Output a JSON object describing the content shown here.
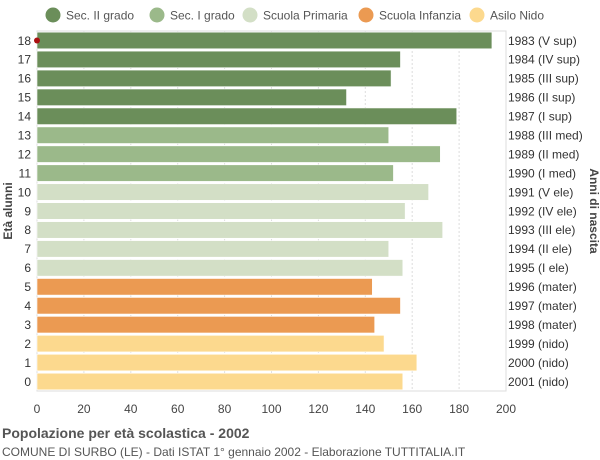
{
  "chart_data": {
    "type": "bar",
    "orientation": "horizontal",
    "legend": {
      "placement": "top",
      "items": [
        {
          "name": "Sec. II grado",
          "color": "#6b8e5a"
        },
        {
          "name": "Sec. I grado",
          "color": "#9bb98a"
        },
        {
          "name": "Scuola Primaria",
          "color": "#d3dfc6"
        },
        {
          "name": "Scuola Infanzia",
          "color": "#eb9a52"
        },
        {
          "name": "Asilo Nido",
          "color": "#fcd98e"
        }
      ]
    },
    "ylabel_left": "Età alunni",
    "ylabel_right": "Anni di nascita",
    "xlim": [
      0,
      200
    ],
    "xticks": [
      "0",
      "20",
      "40",
      "60",
      "80",
      "100",
      "120",
      "140",
      "160",
      "180",
      "200"
    ],
    "grid": true,
    "rows": [
      {
        "age": "18",
        "birth": "1983 (V sup)",
        "value": 194,
        "group": 0
      },
      {
        "age": "17",
        "birth": "1984 (IV sup)",
        "value": 155,
        "group": 0
      },
      {
        "age": "16",
        "birth": "1985 (III sup)",
        "value": 151,
        "group": 0
      },
      {
        "age": "15",
        "birth": "1986 (II sup)",
        "value": 132,
        "group": 0
      },
      {
        "age": "14",
        "birth": "1987 (I sup)",
        "value": 179,
        "group": 0
      },
      {
        "age": "13",
        "birth": "1988 (III med)",
        "value": 150,
        "group": 1
      },
      {
        "age": "12",
        "birth": "1989 (II med)",
        "value": 172,
        "group": 1
      },
      {
        "age": "11",
        "birth": "1990 (I med)",
        "value": 152,
        "group": 1
      },
      {
        "age": "10",
        "birth": "1991 (V ele)",
        "value": 167,
        "group": 2
      },
      {
        "age": "9",
        "birth": "1992 (IV ele)",
        "value": 157,
        "group": 2
      },
      {
        "age": "8",
        "birth": "1993 (III ele)",
        "value": 173,
        "group": 2
      },
      {
        "age": "7",
        "birth": "1994 (II ele)",
        "value": 150,
        "group": 2
      },
      {
        "age": "6",
        "birth": "1995 (I ele)",
        "value": 156,
        "group": 2
      },
      {
        "age": "5",
        "birth": "1996 (mater)",
        "value": 143,
        "group": 3
      },
      {
        "age": "4",
        "birth": "1997 (mater)",
        "value": 155,
        "group": 3
      },
      {
        "age": "3",
        "birth": "1998 (mater)",
        "value": 144,
        "group": 3
      },
      {
        "age": "2",
        "birth": "1999 (nido)",
        "value": 148,
        "group": 4
      },
      {
        "age": "1",
        "birth": "2000 (nido)",
        "value": 162,
        "group": 4
      },
      {
        "age": "0",
        "birth": "2001 (nido)",
        "value": 156,
        "group": 4
      }
    ],
    "marker_color": "#aa1111",
    "title": "Popolazione per età scolastica - 2002",
    "subtitle": "COMUNE DI SURBO (LE) - Dati ISTAT 1° gennaio 2002 - Elaborazione TUTTITALIA.IT"
  }
}
